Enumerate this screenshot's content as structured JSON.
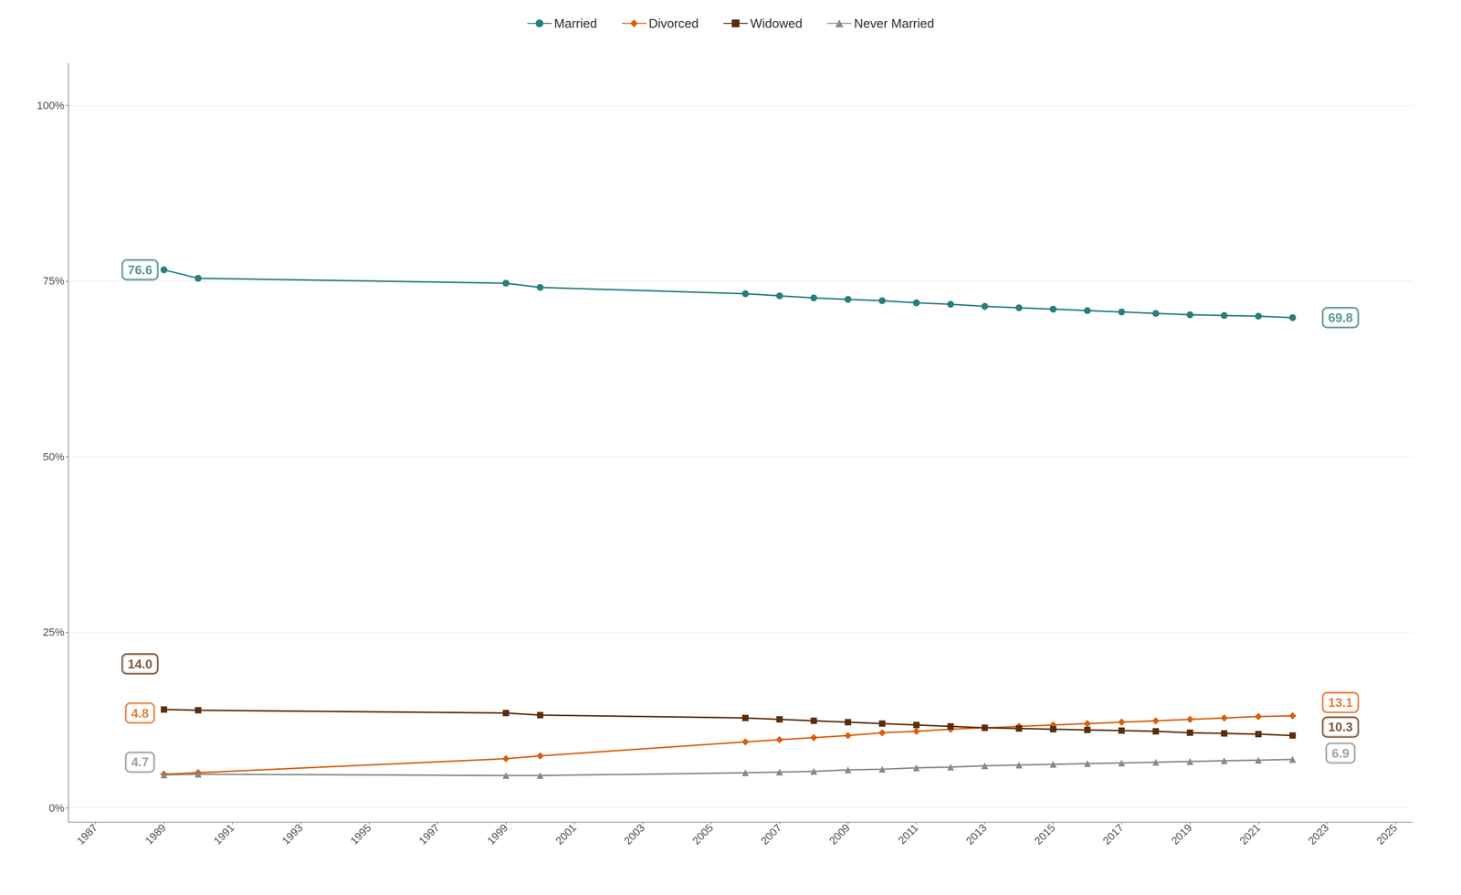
{
  "chart_data": {
    "type": "line",
    "x": [
      1989,
      1990,
      1999,
      2000,
      2006,
      2007,
      2008,
      2009,
      2010,
      2011,
      2012,
      2013,
      2014,
      2015,
      2016,
      2017,
      2018,
      2019,
      2020,
      2021,
      2022
    ],
    "series": [
      {
        "name": "Married",
        "color": "#2a7d7d",
        "marker": "circle",
        "values": [
          76.6,
          75.4,
          74.7,
          74.1,
          73.2,
          72.9,
          72.6,
          72.4,
          72.2,
          71.9,
          71.7,
          71.4,
          71.2,
          71.0,
          70.8,
          70.6,
          70.4,
          70.2,
          70.1,
          70.0,
          69.8
        ]
      },
      {
        "name": "Divorced",
        "color": "#d95f0e",
        "marker": "diamond",
        "values": [
          4.8,
          5.0,
          7.0,
          7.4,
          9.4,
          9.7,
          10.0,
          10.3,
          10.7,
          10.9,
          11.2,
          11.4,
          11.6,
          11.8,
          12.0,
          12.2,
          12.4,
          12.6,
          12.8,
          13.0,
          13.1
        ]
      },
      {
        "name": "Widowed",
        "color": "#5a2d0c",
        "marker": "square",
        "values": [
          14.0,
          13.9,
          13.5,
          13.2,
          12.8,
          12.6,
          12.4,
          12.2,
          12.0,
          11.8,
          11.6,
          11.4,
          11.3,
          11.2,
          11.1,
          11.0,
          10.9,
          10.7,
          10.6,
          10.5,
          10.3
        ]
      },
      {
        "name": "Never Married",
        "color": "#888888",
        "marker": "triangle",
        "values": [
          4.7,
          4.8,
          4.6,
          4.6,
          5.0,
          5.1,
          5.2,
          5.4,
          5.5,
          5.7,
          5.8,
          6.0,
          6.1,
          6.2,
          6.3,
          6.4,
          6.5,
          6.6,
          6.7,
          6.8,
          6.9
        ]
      }
    ],
    "xlim": [
      1986.2,
      2025.5
    ],
    "xticks": [
      1987,
      1989,
      1991,
      1993,
      1995,
      1997,
      1999,
      2001,
      2003,
      2005,
      2007,
      2009,
      2011,
      2013,
      2015,
      2017,
      2019,
      2021,
      2023,
      2025
    ],
    "ylim": [
      -2,
      106
    ],
    "yticks": [
      {
        "value": 0,
        "label": "0%"
      },
      {
        "value": 25,
        "label": "25%"
      },
      {
        "value": 50,
        "label": "50%"
      },
      {
        "value": 75,
        "label": "75%"
      },
      {
        "value": 100,
        "label": "100%"
      }
    ],
    "grid": true,
    "legend": "top",
    "annotations": [
      {
        "text": "14.0",
        "x": 1988.3,
        "y": 20.5,
        "color": "#5a2d0c"
      },
      {
        "text": "4.8",
        "x": 1988.3,
        "y": 13.5,
        "color": "#d95f0e"
      },
      {
        "text": "4.7",
        "x": 1988.3,
        "y": 6.5,
        "color": "#888888"
      },
      {
        "text": "76.6",
        "x": 1988.3,
        "y": 76.6,
        "color": "#2a7d7d"
      },
      {
        "text": "69.8",
        "x": 2023.4,
        "y": 69.8,
        "color": "#2a7d7d"
      },
      {
        "text": "13.1",
        "x": 2023.4,
        "y": 15.0,
        "color": "#d95f0e"
      },
      {
        "text": "10.3",
        "x": 2023.4,
        "y": 11.5,
        "color": "#5a2d0c"
      },
      {
        "text": "6.9",
        "x": 2023.4,
        "y": 7.8,
        "color": "#888888"
      }
    ]
  }
}
